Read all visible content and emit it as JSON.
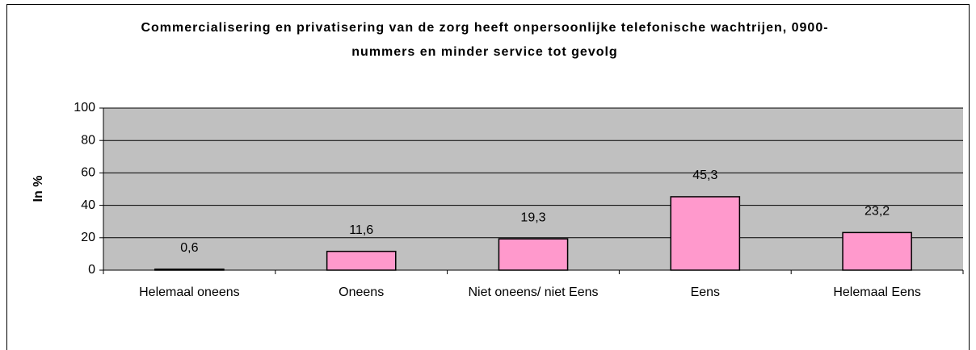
{
  "chart_data": {
    "type": "bar",
    "title": "Commercialisering en privatisering van de zorg heeft onpersoonlijke telefonische wachtrijen, 0900-nummers en minder service tot gevolg",
    "y_label": "In %",
    "categories": [
      "Helemaal oneens",
      "Oneens",
      "Niet oneens/ niet Eens",
      "Eens",
      "Helemaal Eens"
    ],
    "values": [
      0.6,
      11.6,
      19.3,
      45.3,
      23.2
    ],
    "value_labels": [
      "0,6",
      "11,6",
      "19,3",
      "45,3",
      "23,2"
    ],
    "color": "#ff99cc",
    "plot_background": "#c0c0c0",
    "ylim": [
      0,
      100
    ],
    "yticks": [
      0,
      20,
      40,
      60,
      80,
      100
    ],
    "grid": true
  }
}
